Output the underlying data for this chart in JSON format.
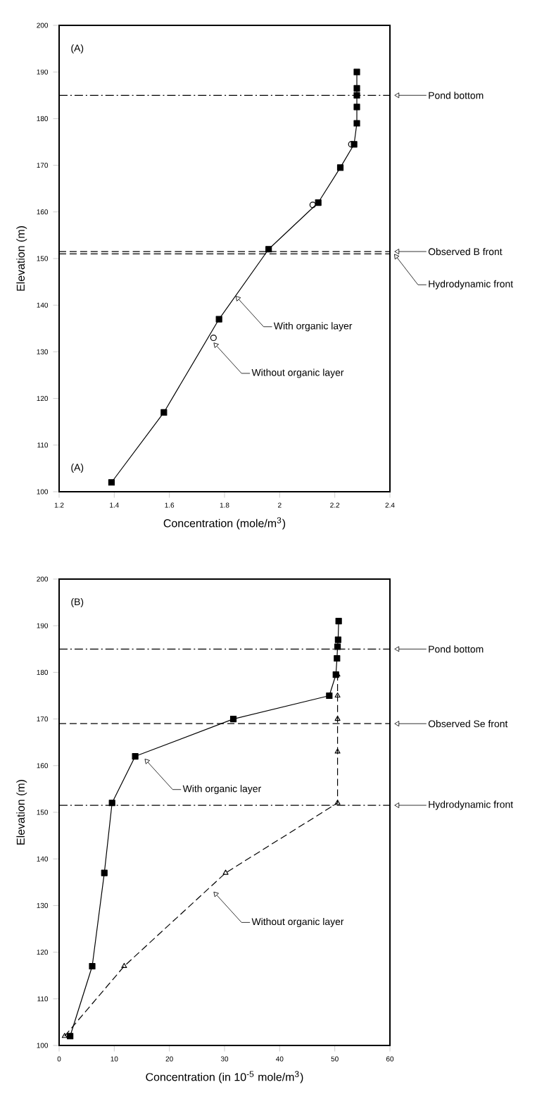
{
  "chart_data": [
    {
      "type": "line",
      "xlabel": "Concentration (mole/m$^{3}$)",
      "ylabel": "Elevation (m)",
      "xlim": [
        1.2,
        2.4
      ],
      "xticks": [
        1.2,
        1.4,
        1.6,
        1.8,
        2,
        2.2,
        2.4
      ],
      "ylim": [
        100,
        200
      ],
      "yticks": [
        100,
        110,
        120,
        130,
        140,
        150,
        160,
        170,
        180,
        190,
        200
      ],
      "series": [
        {
          "color": "#000000",
          "marker": "square",
          "line_style": "solid",
          "x": [
            1.39,
            1.58,
            1.78,
            1.96,
            2.14,
            2.22,
            2.27,
            2.28,
            2.28,
            2.28,
            2.28,
            2.28
          ],
          "values": [
            102,
            117,
            137,
            152,
            162,
            169.5,
            174.5,
            179,
            182.5,
            185,
            186.5,
            190
          ]
        },
        {
          "type": "scatter",
          "color": "#000000",
          "marker": "circle",
          "x": [
            1.76,
            2.12,
            2.26
          ],
          "values": [
            133,
            161.5,
            174.5
          ]
        }
      ],
      "ref_lines": [
        {
          "axis": "y",
          "value": 185,
          "label": "Pond bottom",
          "line_style": "dashdot"
        },
        {
          "axis": "y",
          "value": 151.5,
          "label": "Observed B front",
          "line_style": "dashed"
        },
        {
          "axis": "y",
          "value": 151,
          "label": "Hydrodynamic front",
          "line_style": "dashed"
        }
      ],
      "annotations": [
        "(A)",
        "(A)",
        {
          "text": "With organic layer",
          "x": 1.84,
          "y": 142
        },
        {
          "text": "Without organic layer",
          "x": 1.76,
          "y": 132
        }
      ]
    },
    {
      "type": "line",
      "xlabel": "Concentration (in 10$^{-5}$ mole/m$^{3}$)",
      "ylabel": "Elevation (m)",
      "xlim": [
        0,
        60
      ],
      "xticks": [
        0,
        10,
        20,
        30,
        40,
        50,
        60
      ],
      "ylim": [
        100,
        200
      ],
      "yticks": [
        100,
        110,
        120,
        130,
        140,
        150,
        160,
        170,
        180,
        190,
        200
      ],
      "series": [
        {
          "color": "#000000",
          "marker": "square",
          "line_style": "solid",
          "x": [
            2,
            6,
            8.2,
            9.6,
            13.8,
            31.6,
            49,
            50.2,
            50.4,
            50.5,
            50.6,
            50.7
          ],
          "values": [
            102,
            117,
            137,
            152,
            162,
            170,
            175,
            179.5,
            183,
            185.5,
            187,
            191
          ]
        },
        {
          "color": "#000000",
          "marker": "triangle",
          "line_style": "dashed",
          "x": [
            1,
            11.8,
            30.2,
            50.5,
            50.5,
            50.5,
            50.5,
            50.5
          ],
          "values": [
            102,
            117,
            137,
            152,
            163,
            170,
            175,
            179.5
          ]
        }
      ],
      "ref_lines": [
        {
          "axis": "y",
          "value": 185,
          "label": "Pond bottom",
          "line_style": "dashdot"
        },
        {
          "axis": "y",
          "value": 169,
          "label": "Observed Se front",
          "line_style": "dashed"
        },
        {
          "axis": "y",
          "value": 151.5,
          "label": "Hydrodynamic front",
          "line_style": "dashdot"
        }
      ],
      "annotations": [
        "(B)",
        {
          "text": "With organic layer",
          "x": 15.5,
          "y": 161.5
        },
        {
          "text": "Without organic layer",
          "x": 28,
          "y": 133
        }
      ]
    }
  ]
}
